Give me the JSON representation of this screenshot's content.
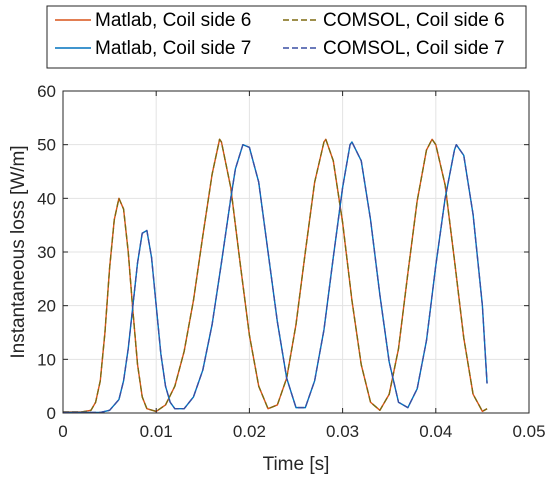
{
  "chart_data": {
    "type": "line",
    "xlabel": "Time [s]",
    "ylabel": "Instantaneous loss [W/m]",
    "xlim": [
      0,
      0.05
    ],
    "ylim": [
      0,
      60
    ],
    "xticks": [
      0,
      0.01,
      0.02,
      0.03,
      0.04,
      0.05
    ],
    "xtick_labels": [
      "0",
      "0.01",
      "0.02",
      "0.03",
      "0.04",
      "0.05"
    ],
    "yticks": [
      0,
      10,
      20,
      30,
      40,
      50,
      60
    ],
    "ytick_labels": [
      "0",
      "10",
      "20",
      "30",
      "40",
      "50",
      "60"
    ],
    "grid": true,
    "legend_position": "top",
    "series": [
      {
        "name": "Matlab, Coil side 6",
        "color": "#D95319",
        "dash": "solid",
        "x": [
          0,
          0.002,
          0.003,
          0.0035,
          0.004,
          0.0045,
          0.005,
          0.0055,
          0.006,
          0.0065,
          0.007,
          0.0075,
          0.008,
          0.0085,
          0.009,
          0.01,
          0.011,
          0.012,
          0.013,
          0.014,
          0.015,
          0.016,
          0.0168,
          0.017,
          0.018,
          0.019,
          0.02,
          0.021,
          0.022,
          0.023,
          0.024,
          0.025,
          0.026,
          0.027,
          0.028,
          0.0282,
          0.029,
          0.03,
          0.031,
          0.032,
          0.033,
          0.034,
          0.035,
          0.036,
          0.037,
          0.038,
          0.039,
          0.0396,
          0.04,
          0.041,
          0.042,
          0.043,
          0.044,
          0.045,
          0.0455
        ],
        "y": [
          0.2,
          0.2,
          0.5,
          2,
          6,
          15,
          27,
          36,
          40,
          38,
          30,
          19,
          9,
          3,
          0.8,
          0.3,
          1.5,
          5,
          11.5,
          21,
          33,
          44.5,
          51,
          50.5,
          42,
          28,
          14.5,
          5,
          0.8,
          1.5,
          6.5,
          16.5,
          30,
          43,
          50.5,
          51,
          47,
          35.5,
          21,
          9,
          2,
          0.5,
          3.5,
          12,
          26,
          39.5,
          49,
          51,
          50,
          42.5,
          28.5,
          14,
          3.5,
          0.3,
          0.8
        ]
      },
      {
        "name": "COMSOL, Coil side 6",
        "color": "#7E6A10",
        "dash": "dashed",
        "x": [
          0,
          0.002,
          0.003,
          0.0035,
          0.004,
          0.0045,
          0.005,
          0.0055,
          0.006,
          0.0065,
          0.007,
          0.0075,
          0.008,
          0.0085,
          0.009,
          0.01,
          0.011,
          0.012,
          0.013,
          0.014,
          0.015,
          0.016,
          0.0168,
          0.017,
          0.018,
          0.019,
          0.02,
          0.021,
          0.022,
          0.023,
          0.024,
          0.025,
          0.026,
          0.027,
          0.028,
          0.0282,
          0.029,
          0.03,
          0.031,
          0.032,
          0.033,
          0.034,
          0.035,
          0.036,
          0.037,
          0.038,
          0.039,
          0.0396,
          0.04,
          0.041,
          0.042,
          0.043,
          0.044,
          0.045,
          0.0455
        ],
        "y": [
          0.2,
          0.2,
          0.5,
          2,
          6,
          15,
          27,
          36,
          40,
          38,
          30,
          19,
          9,
          3,
          0.8,
          0.3,
          1.5,
          5,
          11.5,
          21,
          33,
          44.5,
          51,
          50.5,
          42,
          28,
          14.5,
          5,
          0.8,
          1.5,
          6.5,
          16.5,
          30,
          43,
          50.5,
          51,
          47,
          35.5,
          21,
          9,
          2,
          0.5,
          3.5,
          12,
          26,
          39.5,
          49,
          51,
          50,
          42.5,
          28.5,
          14,
          3.5,
          0.3,
          0.8
        ]
      },
      {
        "name": "Matlab, Coil side 7",
        "color": "#0072BD",
        "dash": "solid",
        "x": [
          0,
          0.004,
          0.005,
          0.006,
          0.0065,
          0.007,
          0.0075,
          0.008,
          0.0085,
          0.009,
          0.0095,
          0.01,
          0.0105,
          0.011,
          0.0115,
          0.012,
          0.013,
          0.014,
          0.015,
          0.016,
          0.017,
          0.018,
          0.0185,
          0.0193,
          0.02,
          0.021,
          0.022,
          0.023,
          0.024,
          0.025,
          0.026,
          0.027,
          0.028,
          0.029,
          0.03,
          0.0308,
          0.031,
          0.032,
          0.033,
          0.034,
          0.035,
          0.036,
          0.037,
          0.038,
          0.039,
          0.04,
          0.041,
          0.042,
          0.0422,
          0.043,
          0.044,
          0.045,
          0.0455
        ],
        "y": [
          0.1,
          0.1,
          0.5,
          2.5,
          6,
          12,
          20,
          28,
          33.5,
          34,
          29,
          20,
          11,
          5,
          2,
          0.8,
          0.8,
          3,
          8,
          16.5,
          28,
          40,
          45.5,
          50,
          49.5,
          43,
          30,
          17,
          6.5,
          1,
          1,
          6,
          15.5,
          29,
          42,
          50,
          50.5,
          47,
          36,
          22,
          9.5,
          2,
          1,
          4.5,
          13.5,
          27.5,
          40,
          49,
          50,
          48,
          37,
          20,
          5.5
        ]
      },
      {
        "name": "COMSOL, Coil side 7",
        "color": "#3A4FA3",
        "dash": "dashed",
        "x": [
          0,
          0.004,
          0.005,
          0.006,
          0.0065,
          0.007,
          0.0075,
          0.008,
          0.0085,
          0.009,
          0.0095,
          0.01,
          0.0105,
          0.011,
          0.0115,
          0.012,
          0.013,
          0.014,
          0.015,
          0.016,
          0.017,
          0.018,
          0.0185,
          0.0193,
          0.02,
          0.021,
          0.022,
          0.023,
          0.024,
          0.025,
          0.026,
          0.027,
          0.028,
          0.029,
          0.03,
          0.0308,
          0.031,
          0.032,
          0.033,
          0.034,
          0.035,
          0.036,
          0.037,
          0.038,
          0.039,
          0.04,
          0.041,
          0.042,
          0.0422,
          0.043,
          0.044,
          0.045,
          0.0455
        ],
        "y": [
          0.1,
          0.1,
          0.5,
          2.5,
          6,
          12,
          20,
          28,
          33.5,
          34,
          29,
          20,
          11,
          5,
          2,
          0.8,
          0.8,
          3,
          8,
          16.5,
          28,
          40,
          45.5,
          50,
          49.5,
          43,
          30,
          17,
          6.5,
          1,
          1,
          6,
          15.5,
          29,
          42,
          50,
          50.5,
          47,
          36,
          22,
          9.5,
          2,
          1,
          4.5,
          13.5,
          27.5,
          40,
          49,
          50,
          48,
          37,
          20,
          5.5
        ]
      }
    ]
  }
}
